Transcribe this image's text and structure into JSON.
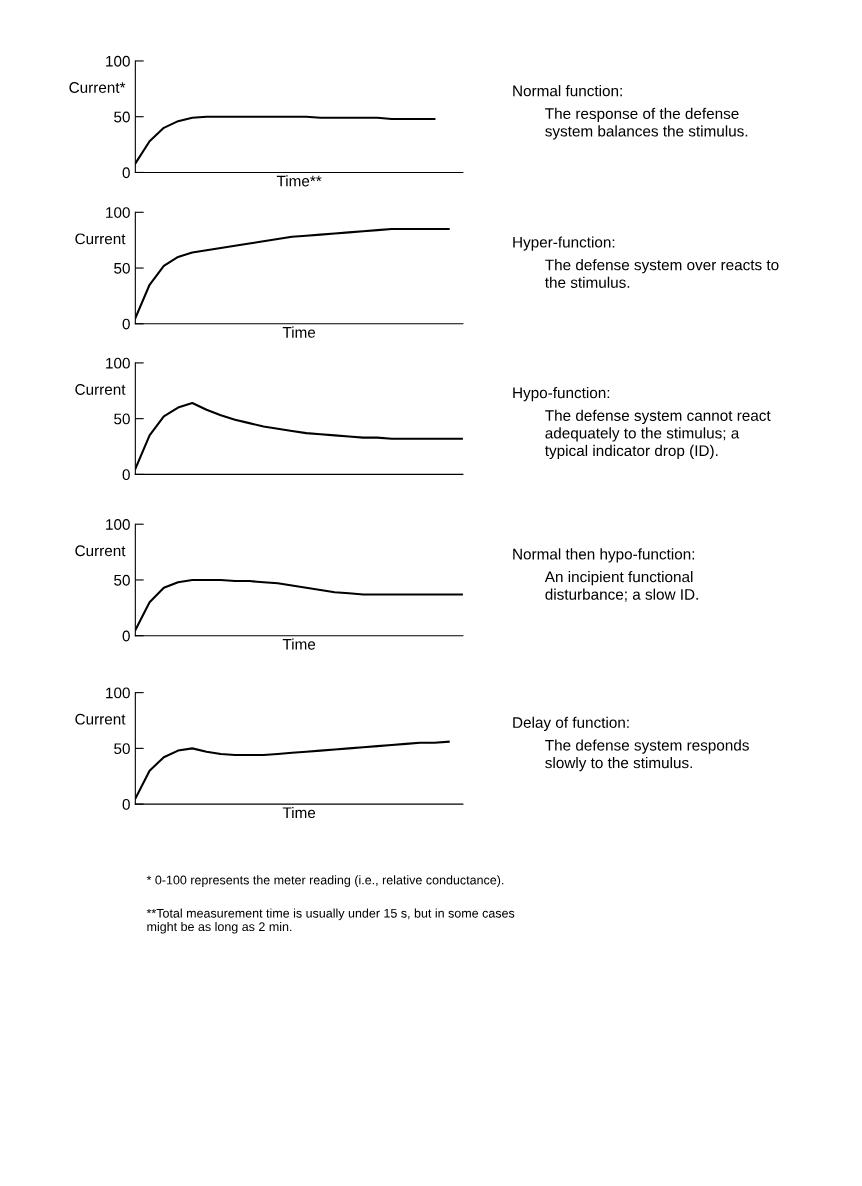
{
  "chart_data": [
    {
      "type": "line",
      "xlabel": "Time**",
      "ylabel": "Current*",
      "categories": [
        null,
        null,
        null,
        null,
        null,
        null,
        null,
        null,
        null,
        null,
        null,
        null,
        null,
        null,
        null,
        null,
        null,
        null,
        null,
        null,
        null,
        null,
        null,
        null
      ],
      "series": [
        {
          "color": "#000000",
          "values": [
            8,
            28,
            40,
            46,
            49,
            50,
            50,
            50,
            50,
            50,
            50,
            50,
            50,
            49,
            49,
            49,
            49,
            49,
            48,
            48,
            48,
            48,
            null,
            null
          ]
        }
      ],
      "ylim": [
        0,
        100
      ],
      "yticks": [
        0,
        50,
        100
      ],
      "tick_labels": "y",
      "grid": false,
      "legend": false,
      "annotations": [
        "Normal function:",
        "The response of the defense\nsystem balances the stimulus."
      ]
    },
    {
      "type": "line",
      "xlabel": "Time",
      "ylabel": "Current",
      "categories": [
        null,
        null,
        null,
        null,
        null,
        null,
        null,
        null,
        null,
        null,
        null,
        null,
        null,
        null,
        null,
        null,
        null,
        null,
        null,
        null,
        null,
        null,
        null,
        null
      ],
      "series": [
        {
          "color": "#000000",
          "values": [
            5,
            35,
            52,
            60,
            64,
            66,
            68,
            70,
            72,
            74,
            76,
            78,
            79,
            80,
            81,
            82,
            83,
            84,
            85,
            85,
            85,
            85,
            85,
            null
          ]
        }
      ],
      "ylim": [
        0,
        100
      ],
      "yticks": [
        0,
        50,
        100
      ],
      "tick_labels": "y",
      "grid": false,
      "legend": false,
      "annotations": [
        "Hyper-function:",
        "The defense system over reacts to\nthe stimulus."
      ]
    },
    {
      "type": "line",
      "ylabel": "Current",
      "categories": [
        null,
        null,
        null,
        null,
        null,
        null,
        null,
        null,
        null,
        null,
        null,
        null,
        null,
        null,
        null,
        null,
        null,
        null,
        null,
        null,
        null,
        null,
        null,
        null
      ],
      "series": [
        {
          "color": "#000000",
          "values": [
            5,
            35,
            52,
            60,
            64,
            58,
            53,
            49,
            46,
            43,
            41,
            39,
            37,
            36,
            35,
            34,
            33,
            33,
            32,
            32,
            32,
            32,
            32,
            32
          ]
        }
      ],
      "ylim": [
        0,
        100
      ],
      "yticks": [
        0,
        50,
        100
      ],
      "tick_labels": "y",
      "grid": false,
      "legend": false,
      "annotations": [
        "Hypo-function:",
        "The defense system cannot react\nadequately to the stimulus; a\ntypical indicator drop (ID)."
      ]
    },
    {
      "type": "line",
      "xlabel": "Time",
      "ylabel": "Current",
      "categories": [
        null,
        null,
        null,
        null,
        null,
        null,
        null,
        null,
        null,
        null,
        null,
        null,
        null,
        null,
        null,
        null,
        null,
        null,
        null,
        null,
        null,
        null,
        null,
        null
      ],
      "series": [
        {
          "color": "#000000",
          "values": [
            5,
            30,
            43,
            48,
            50,
            50,
            50,
            49,
            49,
            48,
            47,
            45,
            43,
            41,
            39,
            38,
            37,
            37,
            37,
            37,
            37,
            37,
            37,
            37
          ]
        }
      ],
      "ylim": [
        0,
        100
      ],
      "yticks": [
        0,
        50,
        100
      ],
      "tick_labels": "y",
      "grid": false,
      "legend": false,
      "annotations": [
        "Normal then hypo-function:",
        "An incipient functional\ndisturbance; a slow ID."
      ]
    },
    {
      "type": "line",
      "xlabel": "Time",
      "ylabel": "Current",
      "categories": [
        null,
        null,
        null,
        null,
        null,
        null,
        null,
        null,
        null,
        null,
        null,
        null,
        null,
        null,
        null,
        null,
        null,
        null,
        null,
        null,
        null,
        null,
        null,
        null
      ],
      "series": [
        {
          "color": "#000000",
          "values": [
            5,
            30,
            42,
            48,
            50,
            47,
            45,
            44,
            44,
            44,
            45,
            46,
            47,
            48,
            49,
            50,
            51,
            52,
            53,
            54,
            55,
            55,
            56,
            null
          ]
        }
      ],
      "ylim": [
        0,
        100
      ],
      "yticks": [
        0,
        50,
        100
      ],
      "tick_labels": "y",
      "grid": false,
      "legend": false,
      "annotations": [
        "Delay of function:",
        "The defense system responds\nslowly to the stimulus.",
        "* 0-100 represents the meter reading (i.e., relative conductance).",
        "**Total measurement time is usually under 15 s, but in some cases\nmight be as long as 2 min."
      ]
    }
  ]
}
